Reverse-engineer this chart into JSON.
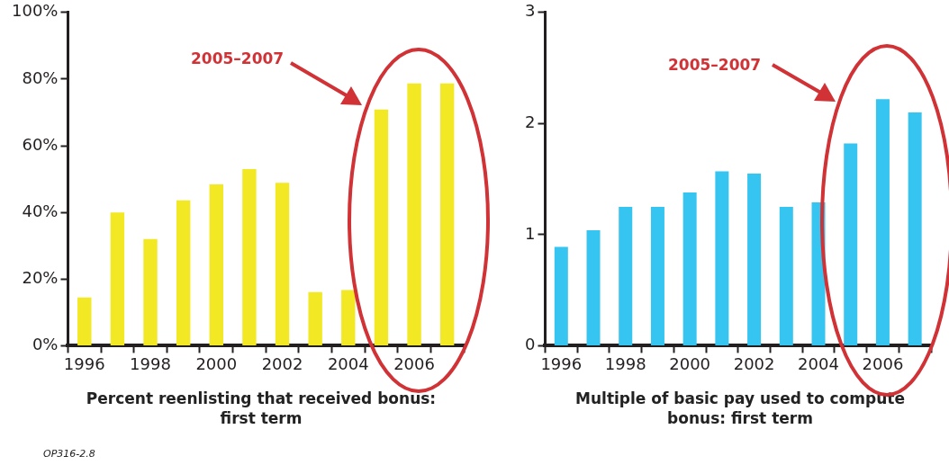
{
  "chart_data": [
    {
      "type": "bar",
      "categories": [
        "1996",
        null,
        "1998",
        null,
        "2000",
        null,
        "2002",
        null,
        "2004",
        null,
        "2006",
        null
      ],
      "values": [
        14.5,
        40,
        32,
        43.6,
        48.4,
        53,
        48.9,
        16.1,
        16.7,
        70.9,
        78.7,
        78.7
      ],
      "color": "#f2e824",
      "ylim": [
        0,
        100
      ],
      "yticks": [
        {
          "value": 0,
          "label": "0%"
        },
        {
          "value": 20,
          "label": "20%"
        },
        {
          "value": 40,
          "label": "40%"
        },
        {
          "value": 60,
          "label": "60%"
        },
        {
          "value": 80,
          "label": "80%"
        },
        {
          "value": 100,
          "label": "100%"
        }
      ],
      "xlabel": "Percent reenlisting that received bonus: first term",
      "annotations": [
        "2005–2007",
        "OP316-2.8"
      ]
    },
    {
      "type": "bar",
      "categories": [
        "1996",
        null,
        "1998",
        null,
        "2000",
        null,
        "2002",
        null,
        "2004",
        null,
        "2006",
        null
      ],
      "values": [
        0.89,
        1.04,
        1.25,
        1.25,
        1.38,
        1.57,
        1.55,
        1.25,
        1.29,
        1.82,
        2.22,
        2.1
      ],
      "color": "#36c4f0",
      "ylim": [
        0,
        3
      ],
      "yticks": [
        0,
        1,
        2,
        3
      ],
      "xlabel": "Multiple of basic pay used to compute bonus: first term",
      "annotations": [
        "2005–2007"
      ]
    }
  ]
}
